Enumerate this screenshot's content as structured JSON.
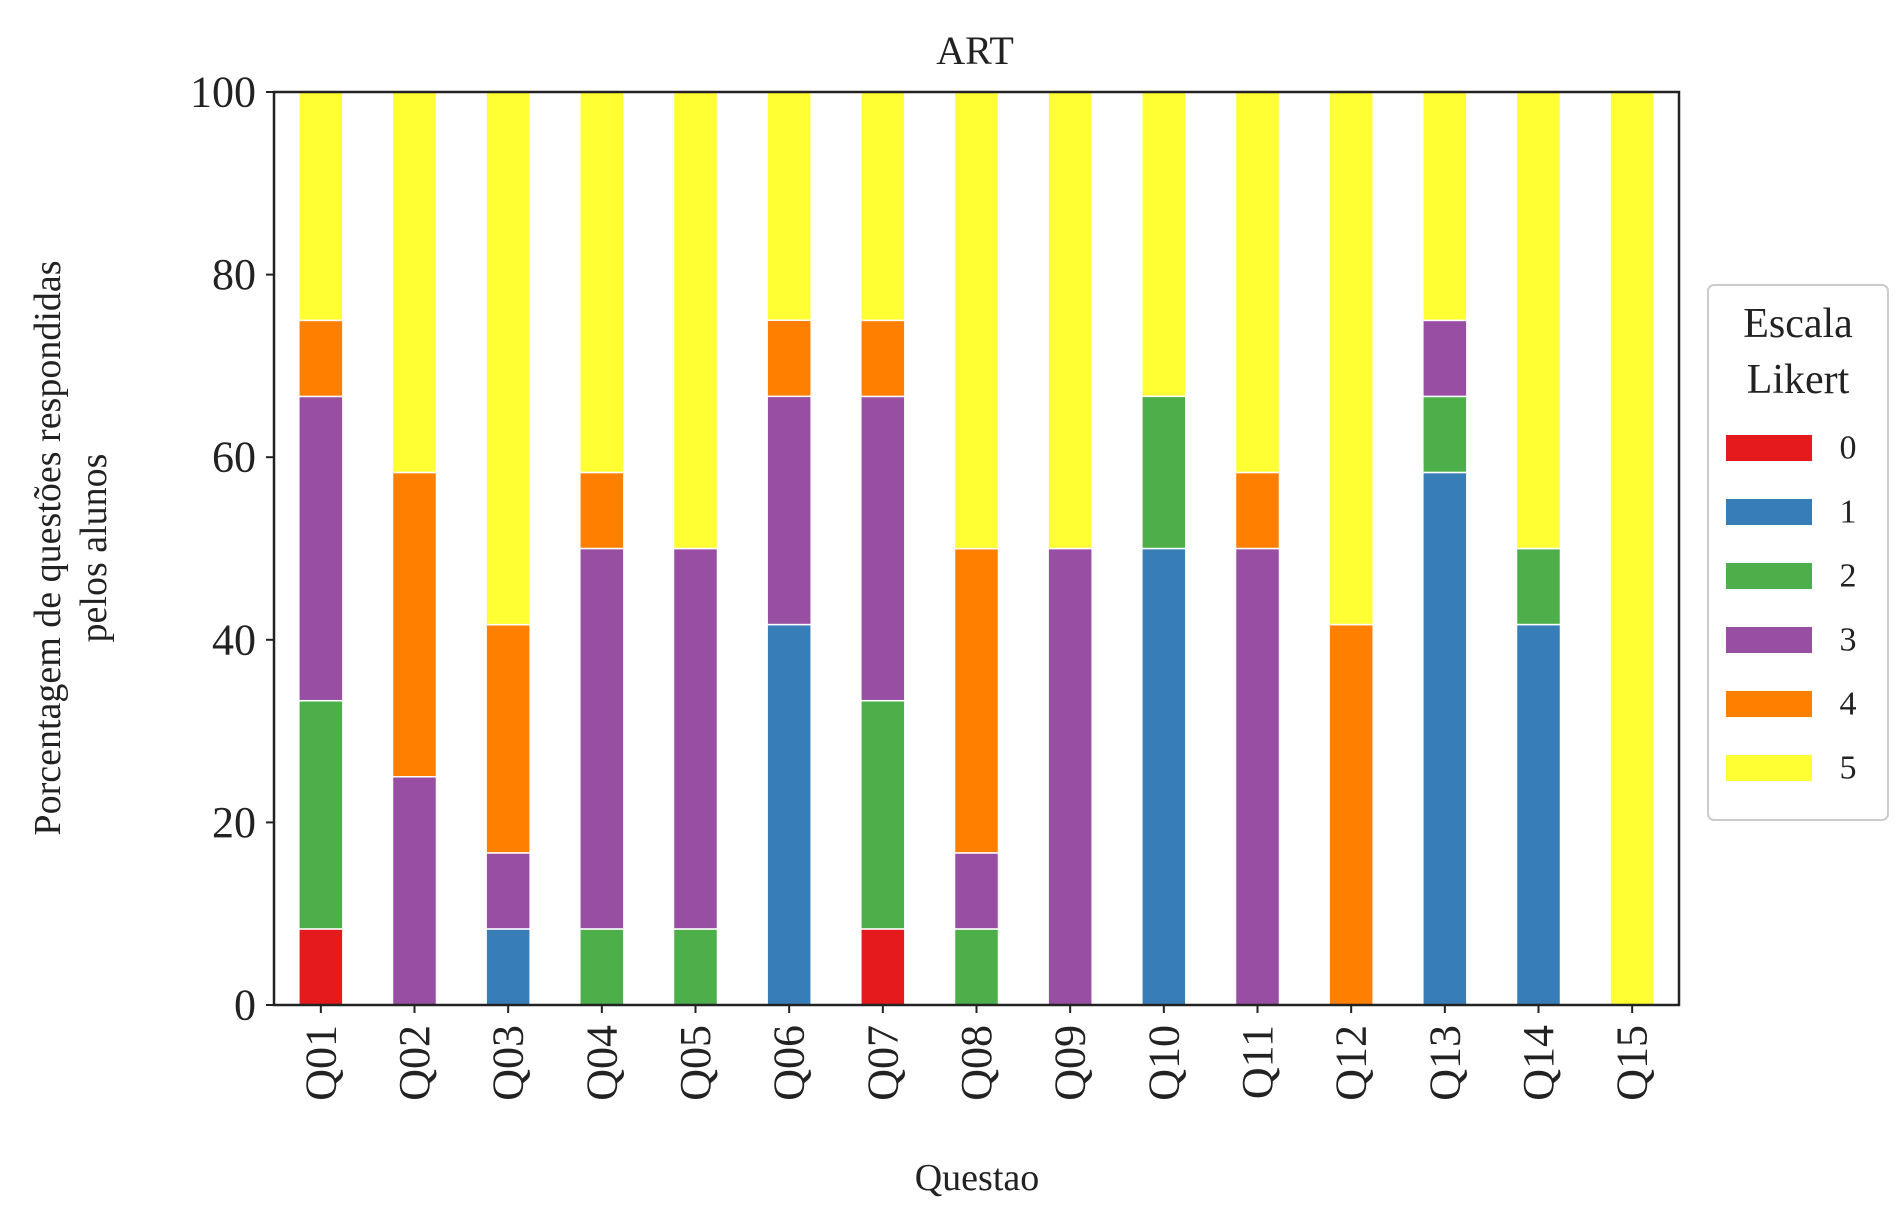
{
  "chart_data": {
    "type": "bar",
    "stacked": true,
    "title": "ART",
    "xlabel": "Questao",
    "ylabel": "Porcentagem de questões respondidas\npelos alunos",
    "ylim": [
      0,
      100
    ],
    "yticks": [
      0,
      20,
      40,
      60,
      80,
      100
    ],
    "grid": false,
    "categories": [
      "Q01",
      "Q02",
      "Q03",
      "Q04",
      "Q05",
      "Q06",
      "Q07",
      "Q08",
      "Q09",
      "Q10",
      "Q11",
      "Q12",
      "Q13",
      "Q14",
      "Q15"
    ],
    "legend": {
      "title": "Escala\nLikert",
      "placement": "right"
    },
    "series": [
      {
        "name": "0",
        "color": "#e41a1c",
        "values": [
          8.33,
          0,
          0,
          0,
          0,
          0,
          8.33,
          0,
          0,
          0,
          0,
          0,
          0,
          0,
          0
        ]
      },
      {
        "name": "1",
        "color": "#377eb8",
        "values": [
          0,
          0,
          8.33,
          0,
          0,
          41.67,
          0,
          0,
          0,
          50,
          0,
          0,
          58.33,
          41.67,
          0
        ]
      },
      {
        "name": "2",
        "color": "#4daf4a",
        "values": [
          25,
          0,
          0,
          8.33,
          8.33,
          0,
          25,
          8.33,
          0,
          16.67,
          0,
          0,
          8.33,
          8.33,
          0
        ]
      },
      {
        "name": "3",
        "color": "#984ea3",
        "values": [
          33.33,
          25,
          8.33,
          41.67,
          41.67,
          25,
          33.33,
          8.33,
          50,
          0,
          50,
          0,
          8.33,
          0,
          0
        ]
      },
      {
        "name": "4",
        "color": "#ff7f00",
        "values": [
          8.33,
          33.33,
          25,
          8.33,
          0,
          8.33,
          8.33,
          33.33,
          0,
          0,
          8.33,
          41.67,
          0,
          0,
          0
        ]
      },
      {
        "name": "5",
        "color": "#ffff33",
        "values": [
          25,
          41.67,
          58.33,
          41.67,
          50,
          25,
          25,
          50,
          50,
          33.33,
          41.67,
          58.33,
          25,
          50,
          100
        ]
      }
    ]
  }
}
